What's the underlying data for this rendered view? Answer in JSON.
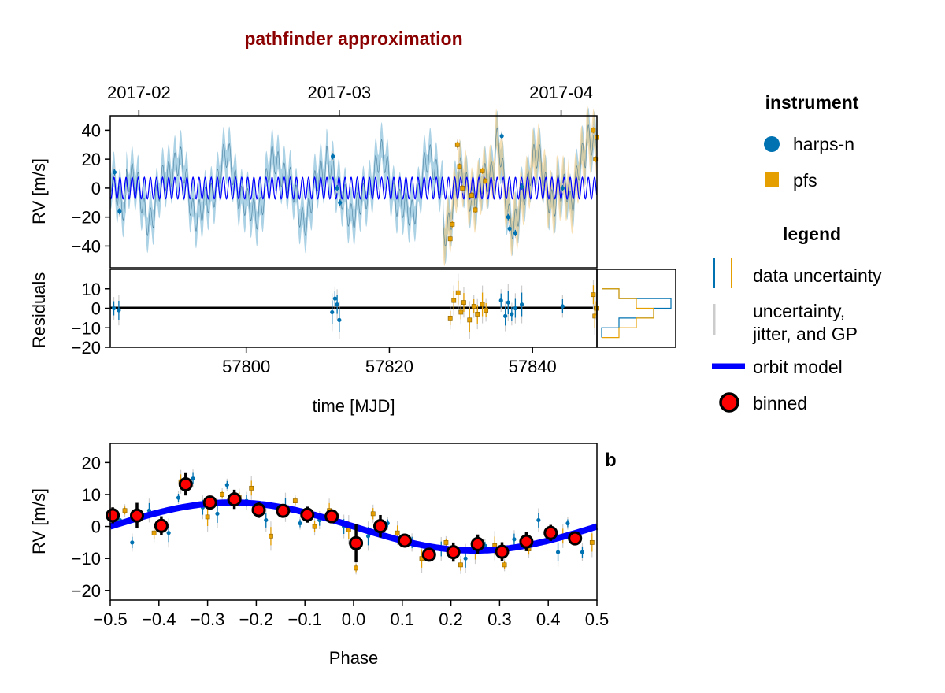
{
  "chart_data": [
    {
      "panel": "rv-time",
      "type": "scatter",
      "title": "pathfinder approximation",
      "ylabel": "RV [m/s]",
      "xlim": [
        57781,
        57849
      ],
      "ylim": [
        -55,
        50
      ],
      "yticks": [
        -40,
        -20,
        0,
        20,
        40
      ],
      "top_axis_ticks": [
        {
          "label": "2017-02",
          "mjd": 57785
        },
        {
          "label": "2017-03",
          "mjd": 57813
        },
        {
          "label": "2017-04",
          "mjd": 57844
        }
      ],
      "orbit_model": {
        "period_days": 0.85,
        "amplitude": 7.5
      },
      "series": [
        {
          "name": "harps-n",
          "marker": "circle",
          "color": "#0072b2",
          "x": [
            57781.6,
            57782.3,
            57812.1,
            57812.7,
            57813.1,
            57835.7,
            57836.6,
            57836.8,
            57837.6,
            57838.5,
            57844.2
          ],
          "y": [
            11,
            -16,
            22,
            0,
            -10,
            36,
            -20,
            -28,
            -31,
            1,
            0
          ]
        },
        {
          "name": "pfs",
          "marker": "square",
          "color": "#e69f00",
          "x": [
            57828.5,
            57828.8,
            57829.5,
            57829.8,
            57830.2,
            57831.5,
            57832.0,
            57833.0,
            57833.4,
            57848.5,
            57848.8,
            57849.0
          ],
          "y": [
            -35,
            -25,
            30,
            15,
            0,
            -5,
            -15,
            12,
            5,
            40,
            20,
            35
          ]
        }
      ]
    },
    {
      "panel": "residuals",
      "type": "scatter",
      "xlabel": "time [MJD]",
      "ylabel": "Residuals",
      "xlim": [
        57781,
        57849
      ],
      "ylim": [
        -20,
        20
      ],
      "xticks": [
        57800,
        57820,
        57840
      ],
      "yticks": [
        -20,
        -10,
        0,
        10
      ],
      "series": [
        {
          "name": "harps-n",
          "x": [
            57781.5,
            57782.2,
            57812.0,
            57812.4,
            57812.7,
            57813.0,
            57835.6,
            57836.2,
            57836.6,
            57837.1,
            57837.6,
            57838.5,
            57844.2
          ],
          "y": [
            0,
            -1,
            -2,
            5,
            2,
            -6,
            4,
            -4,
            3,
            -3,
            0,
            2,
            1
          ]
        },
        {
          "name": "pfs",
          "x": [
            57828.5,
            57829.0,
            57829.6,
            57830.0,
            57830.4,
            57831.2,
            57831.8,
            57832.3,
            57833.0,
            57833.5,
            57848.5,
            57848.7,
            57848.9
          ],
          "y": [
            -5,
            4,
            8,
            -2,
            3,
            -6,
            1,
            -3,
            2,
            -1,
            7,
            -4,
            0
          ]
        }
      ],
      "histogram": {
        "bin_edges": [
          -15,
          -10,
          -5,
          0,
          5,
          10
        ],
        "harps-n": [
          0,
          1,
          3,
          4,
          1
        ],
        "pfs": [
          1,
          2,
          3,
          2,
          1
        ]
      }
    },
    {
      "panel": "phase",
      "type": "scatter",
      "xlabel": "Phase",
      "ylabel": "RV [m/s]",
      "label": "b",
      "xlim": [
        -0.5,
        0.5
      ],
      "ylim": [
        -23,
        26
      ],
      "xticks": [
        -0.5,
        -0.4,
        -0.3,
        -0.2,
        -0.1,
        0.0,
        0.1,
        0.2,
        0.3,
        0.4,
        0.5
      ],
      "xtick_labels": [
        "−0.5",
        "−0.4",
        "−0.3",
        "−0.2",
        "−0.1",
        "0.0",
        "0.1",
        "0.2",
        "0.3",
        "0.4",
        "0.5"
      ],
      "yticks": [
        -20,
        -10,
        0,
        10,
        20
      ],
      "ytick_labels": [
        "−20",
        "−10",
        "0",
        "10",
        "20"
      ],
      "orbit_model": {
        "amplitude": 7.5,
        "phase_of_max": -0.25
      },
      "binned": {
        "x": [
          -0.495,
          -0.445,
          -0.395,
          -0.345,
          -0.295,
          -0.245,
          -0.195,
          -0.145,
          -0.095,
          -0.045,
          0.005,
          0.055,
          0.105,
          0.155,
          0.205,
          0.255,
          0.305,
          0.355,
          0.405,
          0.455
        ],
        "y": [
          3.5,
          3.4,
          0.2,
          13.2,
          7.5,
          8.5,
          5.2,
          4.9,
          3.7,
          3.2,
          -5.2,
          0.1,
          -4.4,
          -8.8,
          -8.0,
          -5.5,
          -7.9,
          -4.7,
          -2.0,
          -3.7
        ],
        "err": [
          2.5,
          4.0,
          3.0,
          3.5,
          2.0,
          3.0,
          2.5,
          2.0,
          2.5,
          2.0,
          6.0,
          3.5,
          1.5,
          1.5,
          3.0,
          3.0,
          3.0,
          3.0,
          2.5,
          2.0
        ]
      },
      "series": [
        {
          "name": "harps-n",
          "x": [
            -0.48,
            -0.455,
            -0.42,
            -0.38,
            -0.36,
            -0.33,
            -0.31,
            -0.28,
            -0.26,
            -0.22,
            -0.18,
            -0.14,
            -0.11,
            -0.07,
            -0.02,
            0.03,
            0.07,
            0.12,
            0.18,
            0.23,
            0.27,
            0.33,
            0.38,
            0.42,
            0.44,
            0.47
          ],
          "y": [
            2,
            -5,
            5,
            -2,
            9,
            15,
            6,
            4,
            13,
            8,
            2,
            6,
            1,
            2,
            0,
            -3,
            1,
            -5,
            -7,
            -10,
            -6,
            -4,
            2,
            -8,
            1,
            -8
          ]
        },
        {
          "name": "pfs",
          "x": [
            -0.47,
            -0.41,
            -0.355,
            -0.3,
            -0.27,
            -0.235,
            -0.21,
            -0.17,
            -0.12,
            -0.08,
            -0.05,
            -0.01,
            0.005,
            0.04,
            0.09,
            0.14,
            0.19,
            0.22,
            0.25,
            0.29,
            0.31,
            0.36,
            0.43,
            0.49
          ],
          "y": [
            5,
            -2,
            14,
            3,
            10,
            9,
            12,
            -3,
            8,
            0,
            5,
            -1,
            -13,
            4,
            -2,
            -10,
            -5,
            -12,
            -8,
            -6,
            -12,
            -7,
            -3,
            -5
          ]
        }
      ]
    }
  ],
  "legend": {
    "instrument_title": "instrument",
    "instrument_items": [
      {
        "label": "harps-n",
        "marker": "circle",
        "color": "#0072b2"
      },
      {
        "label": "pfs",
        "marker": "square",
        "color": "#e69f00"
      }
    ],
    "legend_title": "legend",
    "items": {
      "data_uncertainty": "data uncertainty",
      "uncertainty_line1": "uncertainty,",
      "uncertainty_line2": "jitter, and GP",
      "orbit_model": "orbit model",
      "binned": "binned"
    },
    "colors": {
      "model": "#0000ff",
      "gp_band": "#9ecae1",
      "binned_fill": "#ff0000",
      "jitter": "#cccccc"
    }
  }
}
